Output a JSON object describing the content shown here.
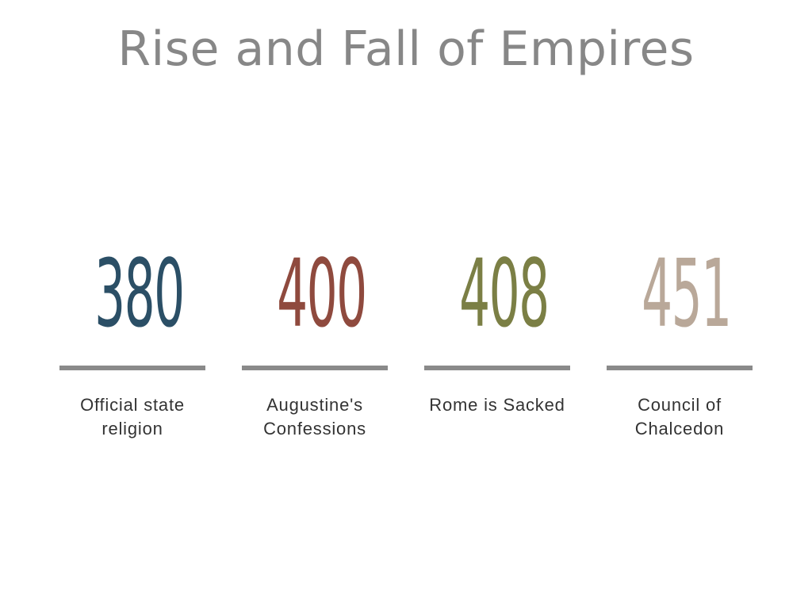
{
  "title": "Rise and Fall of Empires",
  "events": [
    {
      "year": "380",
      "label_lines": [
        "Official state",
        "religion"
      ],
      "color": "#2b4f66"
    },
    {
      "year": "400",
      "label_lines": [
        "Augustine's",
        "Confessions"
      ],
      "color": "#8f4a3e"
    },
    {
      "year": "408",
      "label_lines": [
        "Rome is Sacked"
      ],
      "color": "#7b7f45"
    },
    {
      "year": "451",
      "label_lines": [
        "Council of",
        "Chalcedon"
      ],
      "color": "#b9a899"
    }
  ],
  "colors": {
    "title": "#878787",
    "rule": "#8a8a8a",
    "label": "#333333",
    "background": "#ffffff"
  }
}
